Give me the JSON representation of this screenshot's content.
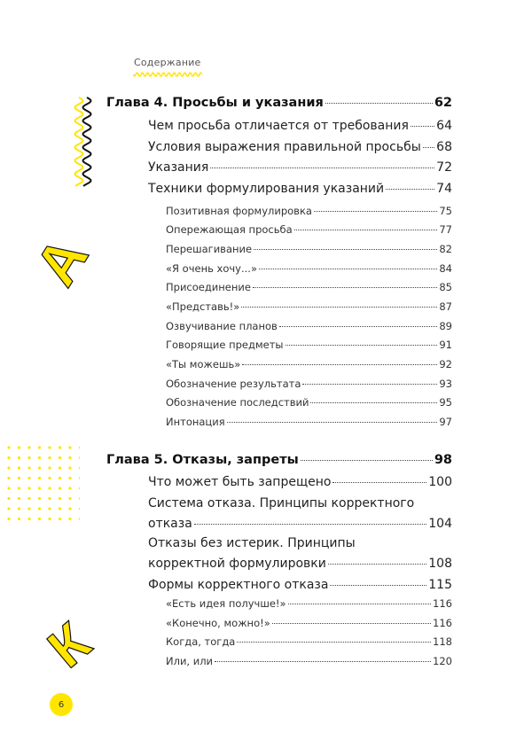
{
  "header": {
    "title": "Содержание"
  },
  "colors": {
    "accent": "#FFE500",
    "ink": "#111111"
  },
  "decorations": [
    "wavy-lines",
    "letter-A",
    "dot-grid",
    "letter-K"
  ],
  "decor_letters": {
    "a": "А",
    "k": "К"
  },
  "toc": [
    {
      "level": 1,
      "lines": [
        "Глава 4. Просьбы и указания"
      ],
      "page": "62"
    },
    {
      "level": 2,
      "lines": [
        "Чем просьба отличается от требования"
      ],
      "page": "64"
    },
    {
      "level": 2,
      "lines": [
        "Условия выражения правильной просьбы"
      ],
      "page": "68"
    },
    {
      "level": 2,
      "lines": [
        "Указания"
      ],
      "page": "72"
    },
    {
      "level": 2,
      "lines": [
        "Техники формулирования указаний"
      ],
      "page": "74"
    },
    {
      "level": 3,
      "lines": [
        "Позитивная формулировка"
      ],
      "page": "75"
    },
    {
      "level": 3,
      "lines": [
        "Опережающая просьба"
      ],
      "page": "77"
    },
    {
      "level": 3,
      "lines": [
        "Перешагивание"
      ],
      "page": "82"
    },
    {
      "level": 3,
      "lines": [
        "«Я очень хочу...»"
      ],
      "page": "84"
    },
    {
      "level": 3,
      "lines": [
        "Присоединение"
      ],
      "page": "85"
    },
    {
      "level": 3,
      "lines": [
        "«Представь!»"
      ],
      "page": "87"
    },
    {
      "level": 3,
      "lines": [
        "Озвучивание планов"
      ],
      "page": "89"
    },
    {
      "level": 3,
      "lines": [
        "Говорящие предметы"
      ],
      "page": "91"
    },
    {
      "level": 3,
      "lines": [
        "«Ты можешь»"
      ],
      "page": "92"
    },
    {
      "level": 3,
      "lines": [
        "Обозначение результата"
      ],
      "page": "93"
    },
    {
      "level": 3,
      "lines": [
        "Обозначение последствий"
      ],
      "page": "95"
    },
    {
      "level": 3,
      "lines": [
        "Интонация"
      ],
      "page": "97"
    },
    {
      "level": 1,
      "lines": [
        "Глава 5. Отказы, запреты"
      ],
      "page": "98"
    },
    {
      "level": 2,
      "lines": [
        "Что может быть запрещено"
      ],
      "page": "100"
    },
    {
      "level": 2,
      "lines": [
        "Система отказа. Принципы корректного",
        "отказа"
      ],
      "page": "104"
    },
    {
      "level": 2,
      "lines": [
        "Отказы без истерик. Принципы",
        "корректной формулировки"
      ],
      "page": "108"
    },
    {
      "level": 2,
      "lines": [
        "Формы корректного отказа"
      ],
      "page": "115"
    },
    {
      "level": 3,
      "lines": [
        "«Есть идея получше!»"
      ],
      "page": "116"
    },
    {
      "level": 3,
      "lines": [
        "«Конечно, можно!»"
      ],
      "page": "116"
    },
    {
      "level": 3,
      "lines": [
        "Когда, тогда"
      ],
      "page": "118"
    },
    {
      "level": 3,
      "lines": [
        "Или, или"
      ],
      "page": "120"
    }
  ],
  "page_number": "6"
}
